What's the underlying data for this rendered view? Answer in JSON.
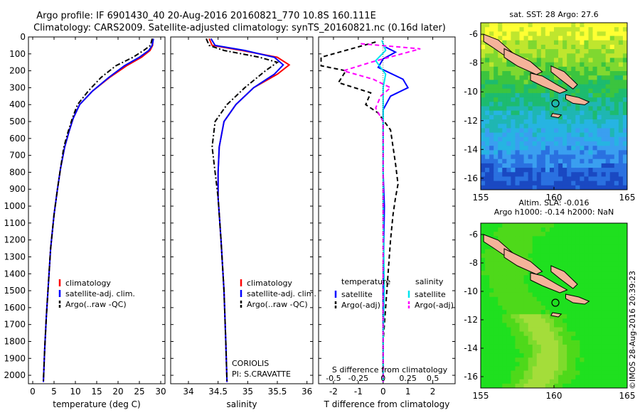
{
  "header": {
    "line1": "Argo profile: IF 6901430_40 20-Aug-2016 20160821_770 10.8S 160.111E",
    "line2": "Climatology: CARS2009. Satellite-adjusted climatology: synTS_20160821.nc (0.16d later)"
  },
  "credit": "©IMOS 28-Aug-2016 20:39:23",
  "colors": {
    "clim": "#ff0000",
    "sat": "#0000ff",
    "argo": "#000000",
    "sat_s": "#00e5ee",
    "argo_s": "#ff00ff"
  },
  "chart_data": [
    {
      "id": "temperature",
      "type": "line",
      "xlabel": "temperature (deg C)",
      "xlim": [
        -1,
        31
      ],
      "ylim": [
        0,
        2050
      ],
      "xticks": [
        0,
        5,
        10,
        15,
        20,
        25,
        30
      ],
      "xtick_labels": [
        "0",
        "5",
        "10",
        "15",
        "20",
        "25",
        "30"
      ],
      "yticks": [
        0,
        100,
        200,
        300,
        400,
        500,
        600,
        700,
        800,
        900,
        1000,
        1100,
        1200,
        1300,
        1400,
        1500,
        1600,
        1700,
        1800,
        1900,
        2000
      ],
      "ytick_labels": [
        "0",
        "100",
        "200",
        "300",
        "400",
        "500",
        "600",
        "700",
        "800",
        "900",
        "1000",
        "1100",
        "1200",
        "1300",
        "1400",
        "1500",
        "1600",
        "1700",
        "1800",
        "1900",
        "2000"
      ],
      "legend": [
        "climatology",
        "satellite-adj. clim.",
        "Argo(..raw -QC)"
      ],
      "series": [
        {
          "name": "climatology",
          "style": "solid",
          "color": "#ff0000",
          "points": [
            [
              28.2,
              10
            ],
            [
              28.1,
              50
            ],
            [
              27.5,
              80
            ],
            [
              25.5,
              120
            ],
            [
              22,
              170
            ],
            [
              18,
              240
            ],
            [
              14,
              320
            ],
            [
              11,
              400
            ],
            [
              9.5,
              480
            ],
            [
              8.5,
              560
            ],
            [
              7.5,
              650
            ],
            [
              6.5,
              780
            ],
            [
              5.8,
              900
            ],
            [
              5,
              1050
            ],
            [
              4.2,
              1250
            ],
            [
              3.7,
              1450
            ],
            [
              3.2,
              1650
            ],
            [
              2.8,
              1850
            ],
            [
              2.5,
              2040
            ]
          ]
        },
        {
          "name": "satellite-adj. clim.",
          "style": "solid",
          "color": "#0000ff",
          "points": [
            [
              28.3,
              10
            ],
            [
              28.0,
              50
            ],
            [
              27.2,
              80
            ],
            [
              25,
              120
            ],
            [
              21.5,
              170
            ],
            [
              17.8,
              240
            ],
            [
              14,
              320
            ],
            [
              11,
              400
            ],
            [
              9.5,
              480
            ],
            [
              8.5,
              560
            ],
            [
              7.5,
              650
            ],
            [
              6.5,
              780
            ],
            [
              5.8,
              900
            ],
            [
              5,
              1050
            ],
            [
              4.2,
              1250
            ],
            [
              3.7,
              1450
            ],
            [
              3.2,
              1650
            ],
            [
              2.8,
              1850
            ],
            [
              2.5,
              2040
            ]
          ]
        },
        {
          "name": "Argo(..raw -QC)",
          "style": "dashdot",
          "color": "#000000",
          "points": [
            [
              28.0,
              10
            ],
            [
              27.6,
              50
            ],
            [
              26,
              80
            ],
            [
              23.5,
              120
            ],
            [
              19.5,
              170
            ],
            [
              16,
              240
            ],
            [
              13,
              320
            ],
            [
              10.5,
              400
            ],
            [
              9.3,
              480
            ],
            [
              8.3,
              560
            ],
            [
              7.3,
              650
            ],
            [
              6.5,
              780
            ],
            [
              5.8,
              900
            ],
            [
              5,
              1050
            ],
            [
              4.2,
              1250
            ],
            [
              3.7,
              1450
            ],
            [
              3.2,
              1650
            ],
            [
              2.8,
              1850
            ],
            [
              2.5,
              2040
            ]
          ]
        }
      ]
    },
    {
      "id": "salinity",
      "type": "line",
      "xlabel": "salinity",
      "xlim": [
        33.7,
        36.1
      ],
      "ylim": [
        0,
        2050
      ],
      "xticks": [
        34,
        34.5,
        35,
        35.5,
        36
      ],
      "xtick_labels": [
        "34",
        "34.5",
        "35",
        "35.5",
        "36"
      ],
      "legend": [
        "climatology",
        "satellite-adj. clim.",
        "Argo(..raw -QC)"
      ],
      "annotation": [
        "CORIOLIS",
        "PI: S.CRAVATTE"
      ],
      "series": [
        {
          "name": "climatology",
          "style": "solid",
          "color": "#ff0000",
          "points": [
            [
              34.35,
              10
            ],
            [
              34.4,
              50
            ],
            [
              34.9,
              80
            ],
            [
              35.5,
              120
            ],
            [
              35.7,
              165
            ],
            [
              35.5,
              220
            ],
            [
              35.1,
              300
            ],
            [
              34.8,
              400
            ],
            [
              34.6,
              500
            ],
            [
              34.52,
              650
            ],
            [
              34.5,
              800
            ],
            [
              34.5,
              950
            ],
            [
              34.55,
              1200
            ],
            [
              34.6,
              1500
            ],
            [
              34.63,
              1800
            ],
            [
              34.65,
              2040
            ]
          ]
        },
        {
          "name": "satellite-adj. clim.",
          "style": "solid",
          "color": "#0000ff",
          "points": [
            [
              34.38,
              10
            ],
            [
              34.45,
              50
            ],
            [
              34.95,
              80
            ],
            [
              35.45,
              120
            ],
            [
              35.6,
              165
            ],
            [
              35.45,
              220
            ],
            [
              35.1,
              300
            ],
            [
              34.8,
              400
            ],
            [
              34.6,
              500
            ],
            [
              34.52,
              650
            ],
            [
              34.5,
              800
            ],
            [
              34.5,
              950
            ],
            [
              34.55,
              1200
            ],
            [
              34.6,
              1500
            ],
            [
              34.63,
              1800
            ],
            [
              34.65,
              2040
            ]
          ]
        },
        {
          "name": "Argo(..raw -QC)",
          "style": "dashdot",
          "color": "#000000",
          "points": [
            [
              34.3,
              10
            ],
            [
              34.35,
              50
            ],
            [
              34.6,
              80
            ],
            [
              35.2,
              120
            ],
            [
              35.5,
              150
            ],
            [
              35.3,
              200
            ],
            [
              34.95,
              300
            ],
            [
              34.65,
              400
            ],
            [
              34.45,
              500
            ],
            [
              34.4,
              650
            ],
            [
              34.45,
              800
            ],
            [
              34.5,
              950
            ],
            [
              34.55,
              1200
            ],
            [
              34.6,
              1500
            ],
            [
              34.63,
              1800
            ],
            [
              34.65,
              2040
            ]
          ]
        }
      ]
    },
    {
      "id": "difference",
      "type": "line",
      "xlabel": "T difference from climatology",
      "top_label": "S difference from climatology",
      "xlim": [
        -2.6,
        2.9
      ],
      "ylim": [
        0,
        2050
      ],
      "xticks": [
        -2,
        -1,
        0,
        1,
        2
      ],
      "xtick_labels": [
        "-2",
        "-1",
        "0",
        "1",
        "2"
      ],
      "s_ticks": [
        -0.5,
        -0.25,
        0,
        0.25,
        0.5
      ],
      "s_tick_labels": [
        "-0.5",
        "-0.25",
        "0",
        "0.25",
        "0.5"
      ],
      "legend_heads": [
        "temperature",
        "salinity"
      ],
      "legend": [
        "satellite",
        "Argo(-adj)",
        "satellite",
        "Argo(-adj)"
      ],
      "series": [
        {
          "name": "T satellite",
          "style": "solid",
          "color": "#0000ff",
          "points": [
            [
              0.1,
              60
            ],
            [
              0.5,
              90
            ],
            [
              0,
              130
            ],
            [
              -0.2,
              180
            ],
            [
              0.8,
              250
            ],
            [
              1,
              300
            ],
            [
              0.3,
              350
            ],
            [
              0,
              430
            ],
            [
              0,
              500
            ],
            [
              0,
              600
            ],
            [
              0,
              700
            ],
            [
              0,
              800
            ],
            [
              0.05,
              1000
            ],
            [
              0,
              1500
            ],
            [
              0,
              2040
            ]
          ]
        },
        {
          "name": "T Argo(-adj)",
          "style": "dashed",
          "color": "#000000",
          "points": [
            [
              -0.3,
              30
            ],
            [
              -2.5,
              120
            ],
            [
              -2.5,
              170
            ],
            [
              -1.5,
              200
            ],
            [
              -1.8,
              270
            ],
            [
              -0.5,
              330
            ],
            [
              -0.7,
              400
            ],
            [
              -0.2,
              450
            ],
            [
              0.3,
              550
            ],
            [
              0.4,
              650
            ],
            [
              0.5,
              750
            ],
            [
              0.6,
              870
            ],
            [
              0.5,
              950
            ],
            [
              0.4,
              1050
            ],
            [
              0.3,
              1200
            ],
            [
              0.2,
              1400
            ],
            [
              0.1,
              1600
            ],
            [
              0,
              1800
            ],
            [
              0,
              2040
            ]
          ]
        },
        {
          "name": "S satellite",
          "style": "solid",
          "color": "#00e5ee",
          "points": [
            [
              -0.05,
              20
            ],
            [
              0.1,
              80
            ],
            [
              -0.3,
              140
            ],
            [
              0.1,
              220
            ],
            [
              0,
              300
            ],
            [
              0,
              450
            ],
            [
              0,
              600
            ],
            [
              0,
              800
            ],
            [
              0,
              1000
            ],
            [
              0.02,
              1200
            ],
            [
              0.05,
              1500
            ],
            [
              0,
              1800
            ],
            [
              0,
              2040
            ]
          ]
        },
        {
          "name": "S Argo(-adj)",
          "style": "dashed",
          "color": "#ff00ff",
          "points": [
            [
              -0.9,
              40
            ],
            [
              1.5,
              70
            ],
            [
              -0.5,
              150
            ],
            [
              -1.6,
              200
            ],
            [
              -0.4,
              250
            ],
            [
              0.3,
              300
            ],
            [
              -0.1,
              350
            ],
            [
              -0.3,
              420
            ],
            [
              0,
              500
            ],
            [
              0,
              700
            ],
            [
              0,
              1000
            ],
            [
              0,
              1500
            ],
            [
              0,
              2040
            ]
          ]
        }
      ]
    },
    {
      "id": "sst-map",
      "type": "heatmap",
      "title": "sat. SST: 28 Argo: 27.6",
      "xlim": [
        155,
        165
      ],
      "ylim": [
        -16.8,
        -5.2
      ],
      "xticks": [
        155,
        160,
        165
      ],
      "xtick_labels": [
        "155",
        "160",
        "165"
      ],
      "yticks": [
        -6,
        -8,
        -10,
        -12,
        -14,
        -16
      ],
      "ytick_labels": [
        "-6",
        "-8",
        "-10",
        "-12",
        "-14",
        "-16"
      ],
      "marker": [
        160.1,
        -10.8
      ],
      "colors": [
        "#ffff33",
        "#bfe62e",
        "#7fd830",
        "#3bc43f",
        "#1dbb6f",
        "#1fb6b2",
        "#26b4e2",
        "#3a9ff0",
        "#2a71e0",
        "#1a49c2"
      ]
    },
    {
      "id": "sla-map",
      "type": "heatmap",
      "title": "Altim. SLA: -0.016",
      "subtitle": "Argo h1000: -0.14 h2000: NaN",
      "xlim": [
        155,
        165
      ],
      "ylim": [
        -16.8,
        -5.2
      ],
      "xticks": [
        155,
        160,
        165
      ],
      "xtick_labels": [
        "155",
        "160",
        "165"
      ],
      "yticks": [
        -6,
        -8,
        -10,
        -12,
        -14,
        -16
      ],
      "ytick_labels": [
        "-6",
        "-8",
        "-10",
        "-12",
        "-14",
        "-16"
      ],
      "marker": [
        160.1,
        -10.8
      ],
      "colors": [
        "#1fe01f",
        "#4ed91a",
        "#7edb2c",
        "#a4dd3a"
      ]
    }
  ]
}
